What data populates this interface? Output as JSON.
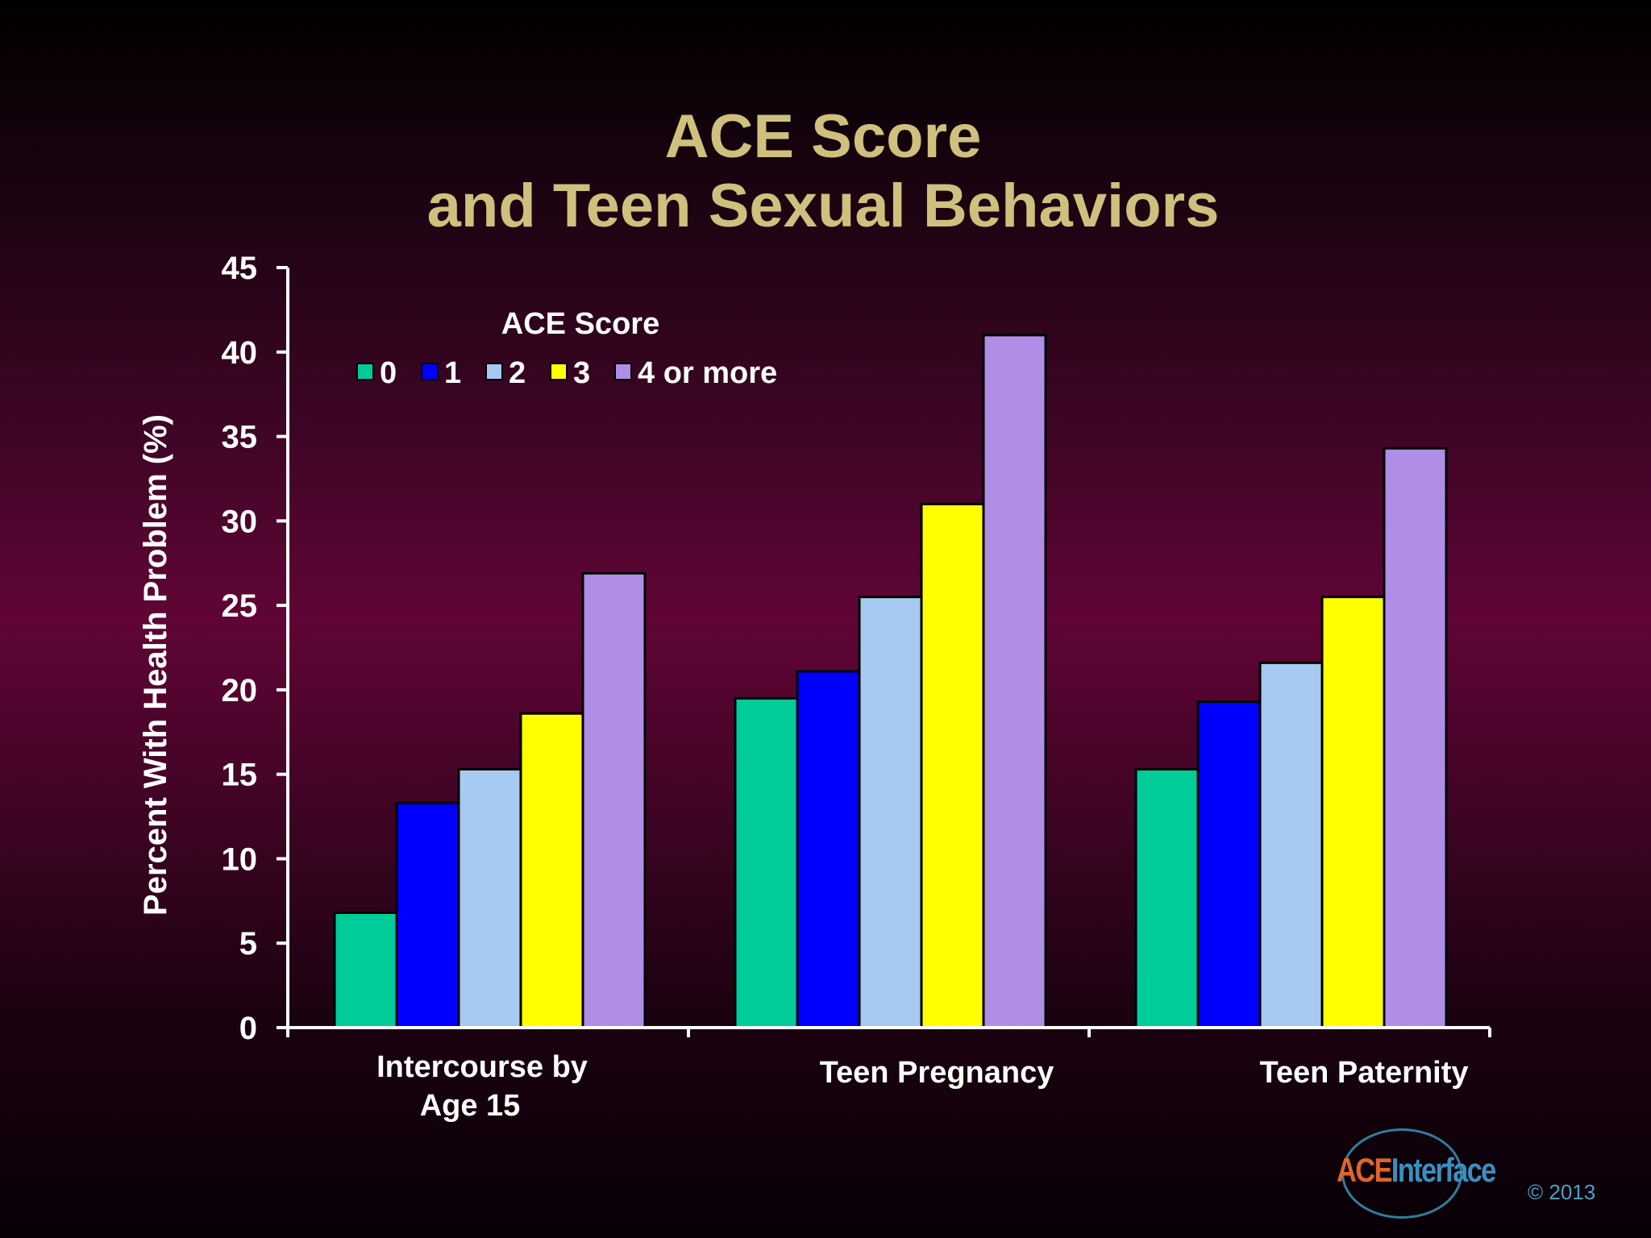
{
  "title": {
    "line1": "ACE Score",
    "line2": "and Teen Sexual Behaviors"
  },
  "chart_data": {
    "type": "bar",
    "ylabel": "Percent With Health Problem  (%)",
    "xlabel": "",
    "ylim": [
      0,
      45
    ],
    "yticks": [
      0,
      5,
      10,
      15,
      20,
      25,
      30,
      35,
      40,
      45
    ],
    "grid": false,
    "legend_title": "ACE Score",
    "legend_placement": "top-left",
    "categories": [
      [
        "Intercourse by",
        "Age 15"
      ],
      [
        "Teen Pregnancy"
      ],
      [
        "Teen Paternity"
      ]
    ],
    "series": [
      {
        "name": "0",
        "color": "#00cc99",
        "values": [
          6.8,
          19.5,
          15.3
        ]
      },
      {
        "name": "1",
        "color": "#0000ff",
        "values": [
          13.3,
          21.1,
          19.3
        ]
      },
      {
        "name": "2",
        "color": "#a6caf0",
        "values": [
          15.3,
          25.5,
          21.6
        ]
      },
      {
        "name": "3",
        "color": "#ffff00",
        "values": [
          18.6,
          31.0,
          25.5
        ]
      },
      {
        "name": "4 or more",
        "color": "#b08ee8",
        "values": [
          26.9,
          41.0,
          34.3
        ]
      }
    ]
  },
  "branding": {
    "logo_ace": "ACE",
    "logo_interface": "Interface",
    "copyright": "© 2013"
  },
  "colors": {
    "title": "#cfc07e",
    "axis": "#ffffff",
    "bar_outline": "#000000"
  }
}
